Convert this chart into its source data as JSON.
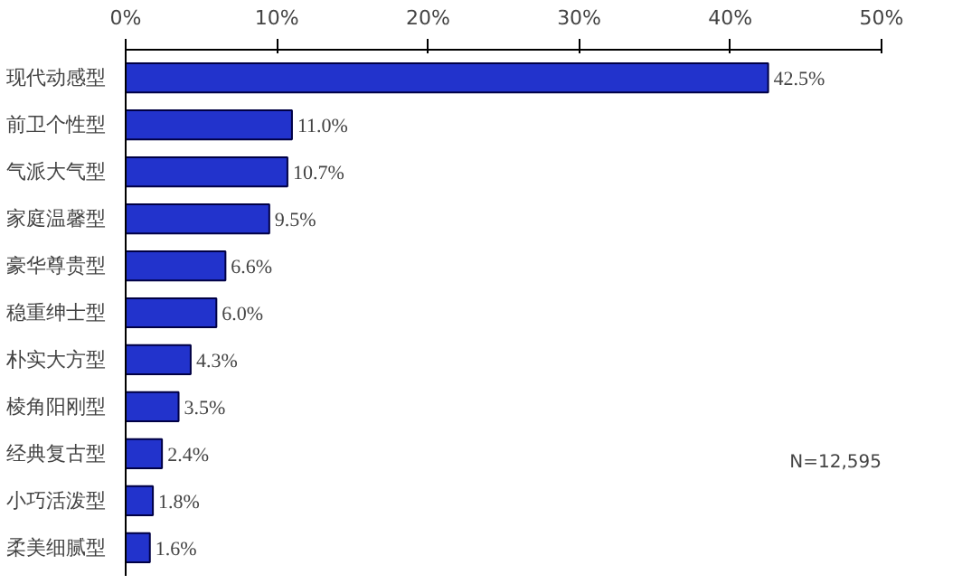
{
  "chart_data": {
    "type": "bar",
    "orientation": "horizontal",
    "categories": [
      "现代动感型",
      "前卫个性型",
      "气派大气型",
      "家庭温馨型",
      "豪华尊贵型",
      "稳重绅士型",
      "朴实大方型",
      "棱角阳刚型",
      "经典复古型",
      "小巧活泼型",
      "柔美细腻型"
    ],
    "values": [
      42.5,
      11.0,
      10.7,
      9.5,
      6.6,
      6.0,
      4.3,
      3.5,
      2.4,
      1.8,
      1.6
    ],
    "value_labels": [
      "42.5%",
      "11.0%",
      "10.7%",
      "9.5%",
      "6.6%",
      "6.0%",
      "4.3%",
      "3.5%",
      "2.4%",
      "1.8%",
      "1.6%"
    ],
    "color": "#2233cc",
    "xlim": [
      0,
      50
    ],
    "xticks": [
      {
        "value": 0,
        "label": "0%"
      },
      {
        "value": 10,
        "label": "10%"
      },
      {
        "value": 20,
        "label": "20%"
      },
      {
        "value": 30,
        "label": "30%"
      },
      {
        "value": 40,
        "label": "40%"
      },
      {
        "value": 50,
        "label": "50%"
      }
    ],
    "grid": false,
    "annotations": [
      "N=12,595"
    ]
  }
}
